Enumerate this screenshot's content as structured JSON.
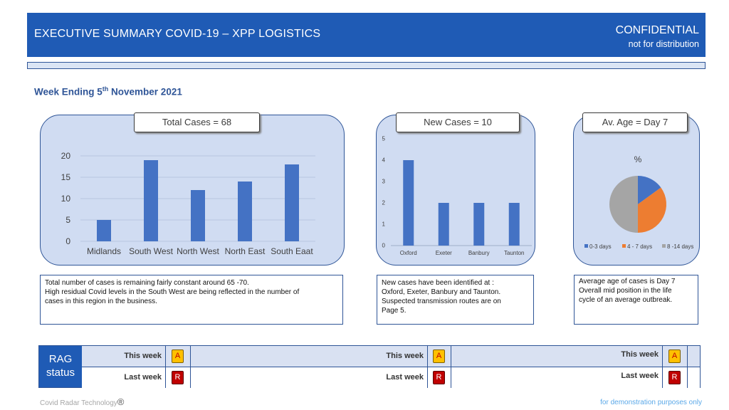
{
  "header": {
    "title": "EXECUTIVE SUMMARY COVID-19 – XPP LOGISTICS",
    "confidential": "CONFIDENTIAL",
    "subtitle": "not for distribution"
  },
  "week": {
    "prefix": "Week Ending 5",
    "suffix": "th",
    "rest": " November 2021"
  },
  "panels": {
    "total": {
      "title": "Total Cases = 68"
    },
    "new": {
      "title": "New Cases = 10"
    },
    "age": {
      "title": "Av. Age = Day 7"
    }
  },
  "notes": {
    "total": [
      "Total number of cases is remaining fairly constant around 65 -70.",
      "High residual Covid levels in the South West are being reflected in the number of",
      "cases in this region in the business."
    ],
    "new": [
      "New cases have been identified at :",
      "Oxford, Exeter, Banbury and Taunton.",
      "Suspected transmission routes are on",
      "Page 5."
    ],
    "age": [
      "Average age of cases is Day 7",
      "Overall mid position in the life",
      "cycle of an average outbreak."
    ]
  },
  "chart_data": [
    {
      "type": "bar",
      "categories": [
        "Midlands",
        "South West",
        "North West",
        "North East",
        "South Eaat"
      ],
      "values": [
        5,
        19,
        12,
        14,
        18
      ],
      "ylim": [
        0,
        20
      ],
      "yticks": [
        0,
        5,
        10,
        15,
        20
      ],
      "color": "#4472c4",
      "grid": true
    },
    {
      "type": "bar",
      "categories": [
        "Oxford",
        "Exeter",
        "Banbury",
        "Taunton"
      ],
      "values": [
        4,
        2,
        2,
        2
      ],
      "ylim": [
        0,
        5
      ],
      "yticks": [
        0,
        1,
        2,
        3,
        4,
        5
      ],
      "color": "#4472c4",
      "grid": false
    },
    {
      "type": "pie",
      "title": "%",
      "slices": [
        {
          "label": "0-3 days",
          "value": 15,
          "color": "#4472c4"
        },
        {
          "label": "4 - 7 days",
          "value": 35,
          "color": "#ed7d31"
        },
        {
          "label": "8 -14 days",
          "value": 50,
          "color": "#a5a5a5"
        }
      ],
      "legend": "bottom"
    }
  ],
  "rag": {
    "label_line1": "RAG",
    "label_line2": "status",
    "this_week": "This week",
    "last_week": "Last week",
    "statuses": [
      {
        "this": "A",
        "last": "R"
      },
      {
        "this": "A",
        "last": "R"
      },
      {
        "this": "A",
        "last": "R"
      }
    ],
    "colors": {
      "this_row": "#d9e1f2",
      "last_row": "#ffffff",
      "amber": "#ffc000",
      "red": "#c00000"
    }
  },
  "footer": {
    "left": "Covid Radar Technology",
    "left_mark": "®",
    "right": "for demonstration  purposes only"
  }
}
